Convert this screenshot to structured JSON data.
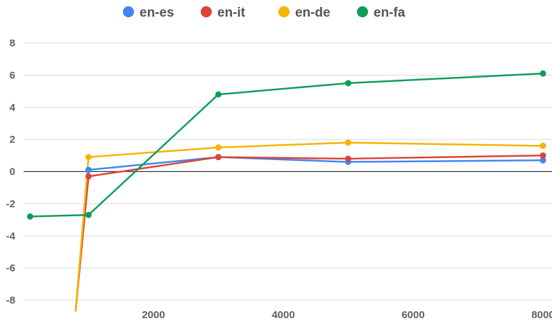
{
  "chart_data": {
    "type": "line",
    "legend_position": "top",
    "grid": true,
    "xlim": [
      0,
      8000
    ],
    "ylim": [
      -8,
      8
    ],
    "x_ticks": [
      2000,
      4000,
      6000,
      8000
    ],
    "y_ticks": [
      8,
      6,
      4,
      2,
      0,
      -2,
      -4,
      -6,
      -8
    ],
    "series": [
      {
        "name": "en-es",
        "color": "#4285f4",
        "points": [
          [
            800,
            -8.7
          ],
          [
            1000,
            0.1
          ],
          [
            3000,
            0.9
          ],
          [
            5000,
            0.6
          ],
          [
            8000,
            0.7
          ]
        ]
      },
      {
        "name": "en-it",
        "color": "#db4437",
        "points": [
          [
            800,
            -8.7
          ],
          [
            1000,
            -0.3
          ],
          [
            3000,
            0.9
          ],
          [
            5000,
            0.8
          ],
          [
            8000,
            1.0
          ]
        ]
      },
      {
        "name": "en-de",
        "color": "#f4b400",
        "points": [
          [
            800,
            -8.7
          ],
          [
            1000,
            0.9
          ],
          [
            3000,
            1.5
          ],
          [
            5000,
            1.8
          ],
          [
            8000,
            1.6
          ]
        ]
      },
      {
        "name": "en-fa",
        "color": "#0f9d58",
        "points": [
          [
            100,
            -2.8
          ],
          [
            1000,
            -2.7
          ],
          [
            3000,
            4.8
          ],
          [
            5000,
            5.5
          ],
          [
            8000,
            6.1
          ]
        ]
      }
    ]
  }
}
